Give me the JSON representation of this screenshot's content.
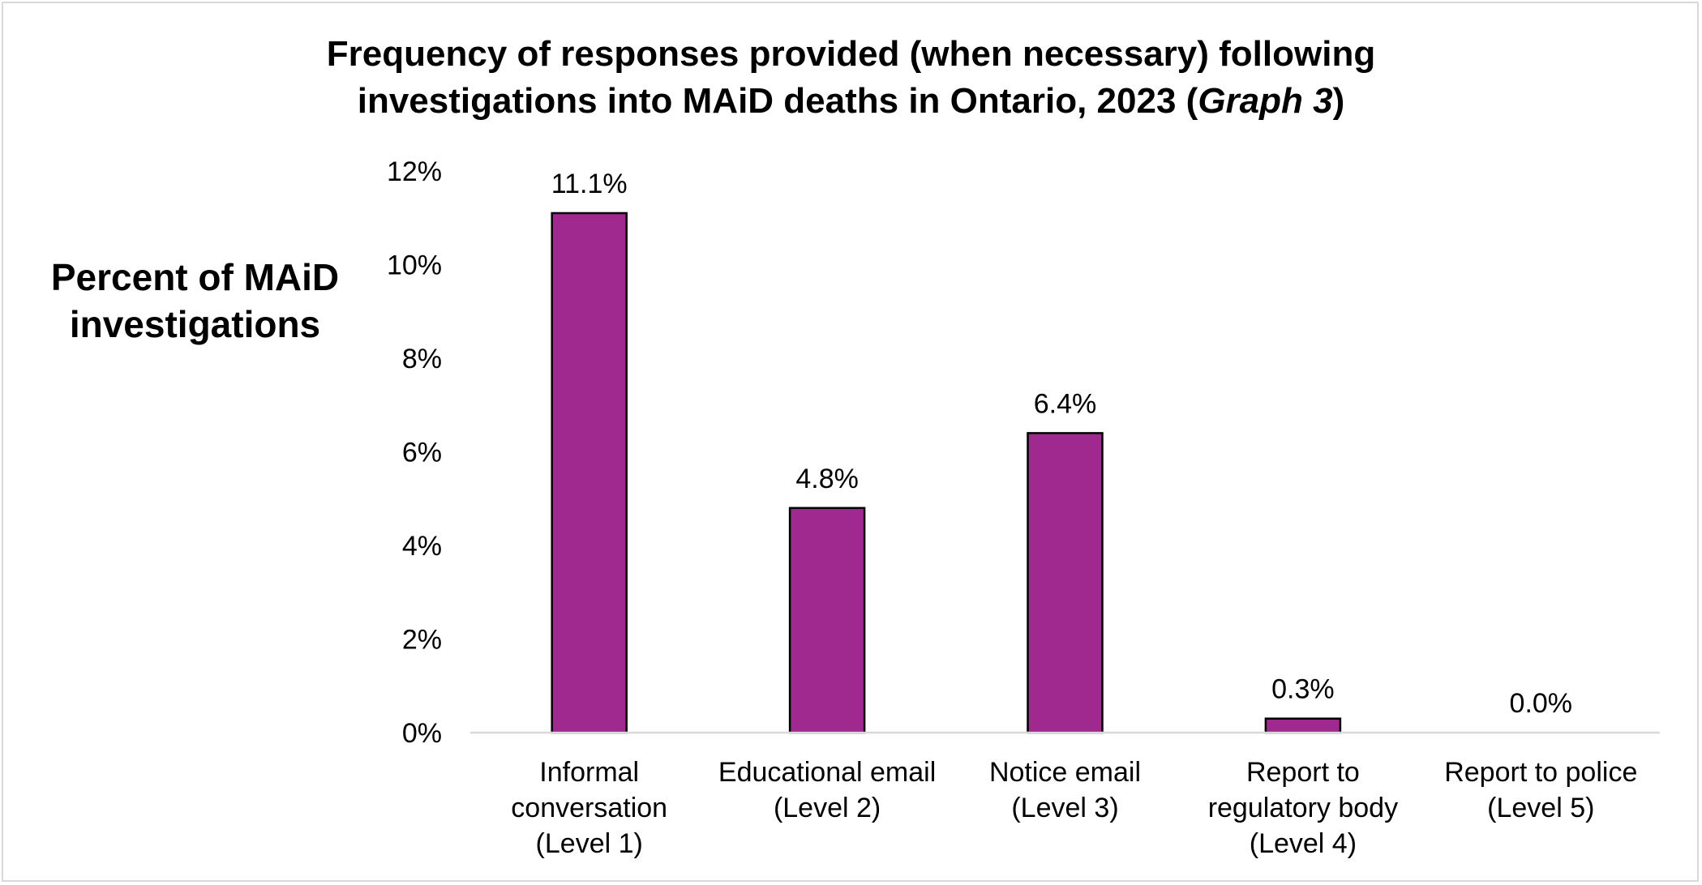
{
  "chart_data": {
    "type": "bar",
    "title_line1": "Frequency of responses provided (when necessary) following",
    "title_line2_pre": "investigations into MAiD deaths in Ontario, 2023 (",
    "title_line2_italic": "Graph 3",
    "title_line2_post": ")",
    "ylabel_line1": "Percent of MAiD",
    "ylabel_line2": "investigations",
    "xlabel": "",
    "ylim": [
      0,
      12
    ],
    "yticks": [
      0,
      2,
      4,
      6,
      8,
      10,
      12
    ],
    "ytick_labels": [
      "0%",
      "2%",
      "4%",
      "6%",
      "8%",
      "10%",
      "12%"
    ],
    "categories": [
      [
        "Informal",
        "conversation",
        "(Level 1)"
      ],
      [
        "Educational email",
        "(Level 2)"
      ],
      [
        "Notice email",
        "(Level 3)"
      ],
      [
        "Report to",
        "regulatory body",
        "(Level 4)"
      ],
      [
        "Report to police",
        "(Level 5)"
      ]
    ],
    "values": [
      11.1,
      4.8,
      6.4,
      0.3,
      0.0
    ],
    "data_labels": [
      "11.1%",
      "4.8%",
      "6.4%",
      "0.3%",
      "0.0%"
    ],
    "bar_color": "#a0298f",
    "bar_outline_color": "#000000",
    "grid": false,
    "legend": "none"
  }
}
